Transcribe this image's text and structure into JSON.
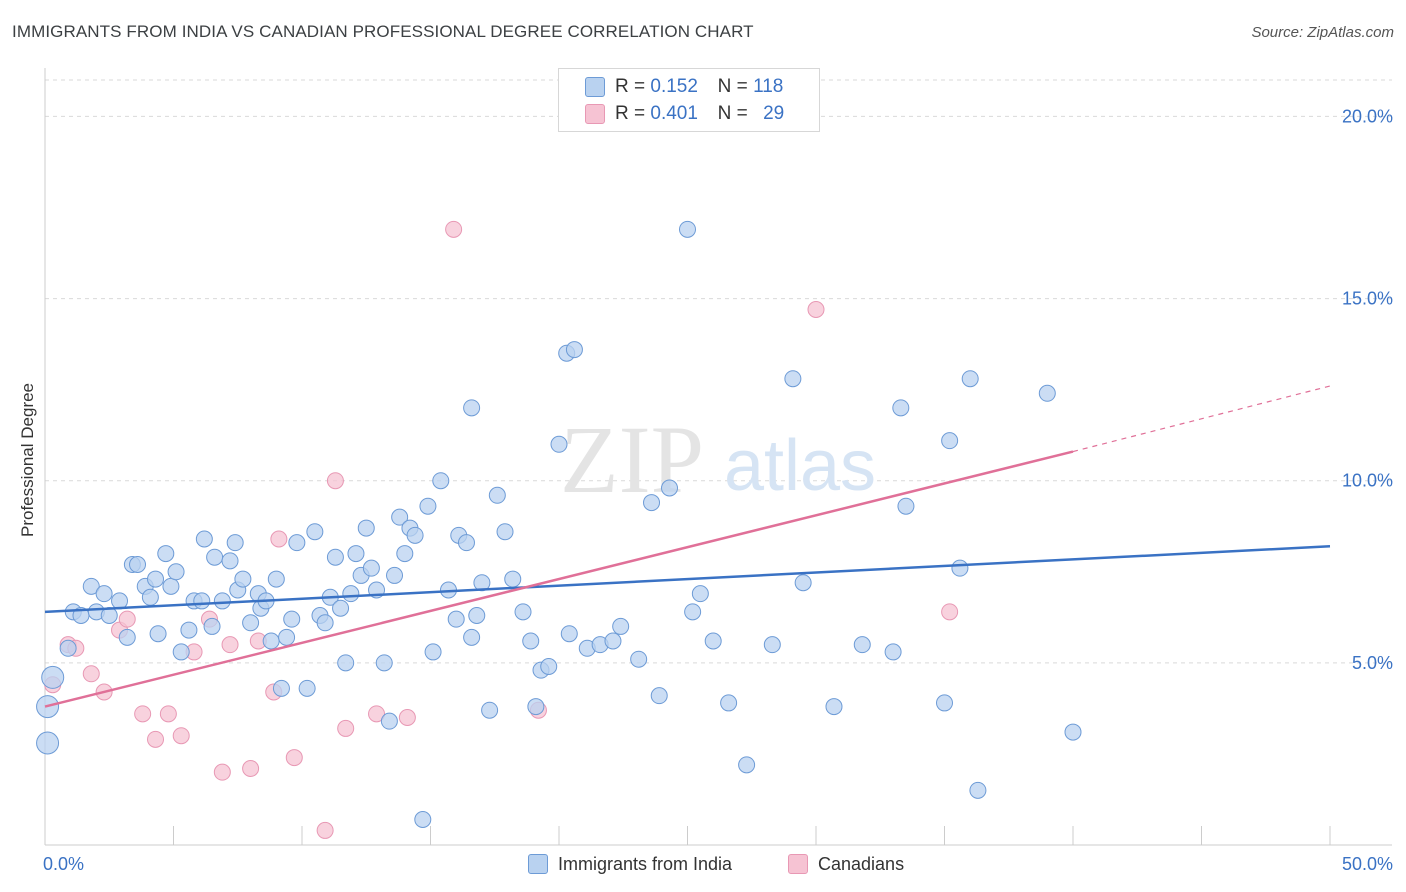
{
  "header": {
    "title": "IMMIGRANTS FROM INDIA VS CANADIAN PROFESSIONAL DEGREE CORRELATION CHART",
    "source": "Source: ZipAtlas.com"
  },
  "watermark": {
    "zip": "ZIP",
    "atlas": "atlas"
  },
  "legend": {
    "r_label": "R =",
    "n_label": "N =",
    "rows": [
      {
        "r": "0.152",
        "n": "118"
      },
      {
        "r": "0.401",
        "n": "29"
      }
    ]
  },
  "colors": {
    "blue": "#3a72c4",
    "blue_fill": "#b9d2f0",
    "blue_stroke": "#6d9bd6",
    "pink": "#e07098",
    "pink_fill": "#f6c3d3",
    "pink_stroke": "#e898b4",
    "grid": "#d9d9d9",
    "axis_text": "#3a72c4"
  },
  "chart_data": {
    "type": "scatter",
    "title": "IMMIGRANTS FROM INDIA VS CANADIAN PROFESSIONAL DEGREE CORRELATION CHART",
    "xlabel": "",
    "ylabel": "Professional Degree",
    "xlim": [
      0,
      50
    ],
    "ylim": [
      0,
      21
    ],
    "x_tick_labels": [
      "0.0%",
      "50.0%"
    ],
    "y_ticks": [
      5,
      10,
      15,
      20
    ],
    "y_tick_labels": [
      "5.0%",
      "10.0%",
      "15.0%",
      "20.0%"
    ],
    "grid": true,
    "legend_position": "top-center",
    "series": [
      {
        "name": "Immigrants from India",
        "color": "#3a72c4",
        "r": 0.152,
        "n": 118,
        "trend": {
          "x": [
            0,
            50
          ],
          "y": [
            6.4,
            8.2
          ]
        },
        "points": [
          [
            0.3,
            4.6
          ],
          [
            0.9,
            5.4
          ],
          [
            1.1,
            6.4
          ],
          [
            1.4,
            6.3
          ],
          [
            1.8,
            7.1
          ],
          [
            2.0,
            6.4
          ],
          [
            2.3,
            6.9
          ],
          [
            2.5,
            6.3
          ],
          [
            2.9,
            6.7
          ],
          [
            3.2,
            5.7
          ],
          [
            3.4,
            7.7
          ],
          [
            3.6,
            7.7
          ],
          [
            3.9,
            7.1
          ],
          [
            4.1,
            6.8
          ],
          [
            4.3,
            7.3
          ],
          [
            4.4,
            5.8
          ],
          [
            4.7,
            8.0
          ],
          [
            4.9,
            7.1
          ],
          [
            5.1,
            7.5
          ],
          [
            5.3,
            5.3
          ],
          [
            5.6,
            5.9
          ],
          [
            5.8,
            6.7
          ],
          [
            6.1,
            6.7
          ],
          [
            6.2,
            8.4
          ],
          [
            6.5,
            6.0
          ],
          [
            6.6,
            7.9
          ],
          [
            6.9,
            6.7
          ],
          [
            7.2,
            7.8
          ],
          [
            7.4,
            8.3
          ],
          [
            7.5,
            7.0
          ],
          [
            7.7,
            7.3
          ],
          [
            8.0,
            6.1
          ],
          [
            8.3,
            6.9
          ],
          [
            8.4,
            6.5
          ],
          [
            8.6,
            6.7
          ],
          [
            8.8,
            5.6
          ],
          [
            9.0,
            7.3
          ],
          [
            9.2,
            4.3
          ],
          [
            9.4,
            5.7
          ],
          [
            9.6,
            6.2
          ],
          [
            9.8,
            8.3
          ],
          [
            10.2,
            4.3
          ],
          [
            10.5,
            8.6
          ],
          [
            10.7,
            6.3
          ],
          [
            10.9,
            6.1
          ],
          [
            11.1,
            6.8
          ],
          [
            11.3,
            7.9
          ],
          [
            11.5,
            6.5
          ],
          [
            11.7,
            5.0
          ],
          [
            11.9,
            6.9
          ],
          [
            12.1,
            8.0
          ],
          [
            12.3,
            7.4
          ],
          [
            12.5,
            8.7
          ],
          [
            12.7,
            7.6
          ],
          [
            12.9,
            7.0
          ],
          [
            13.2,
            5.0
          ],
          [
            13.4,
            3.4
          ],
          [
            13.6,
            7.4
          ],
          [
            13.8,
            9.0
          ],
          [
            14.0,
            8.0
          ],
          [
            14.2,
            8.7
          ],
          [
            14.4,
            8.5
          ],
          [
            14.7,
            0.7
          ],
          [
            14.9,
            9.3
          ],
          [
            15.1,
            5.3
          ],
          [
            15.4,
            10.0
          ],
          [
            15.7,
            7.0
          ],
          [
            16.0,
            6.2
          ],
          [
            16.1,
            8.5
          ],
          [
            16.4,
            8.3
          ],
          [
            16.6,
            5.7
          ],
          [
            16.8,
            6.3
          ],
          [
            17.0,
            7.2
          ],
          [
            17.3,
            3.7
          ],
          [
            17.6,
            9.6
          ],
          [
            17.9,
            8.6
          ],
          [
            18.2,
            7.3
          ],
          [
            18.6,
            6.4
          ],
          [
            18.9,
            5.6
          ],
          [
            19.1,
            3.8
          ],
          [
            19.3,
            4.8
          ],
          [
            19.6,
            4.9
          ],
          [
            20.0,
            11.0
          ],
          [
            20.3,
            13.5
          ],
          [
            20.6,
            13.6
          ],
          [
            20.4,
            5.8
          ],
          [
            21.1,
            5.4
          ],
          [
            21.6,
            5.5
          ],
          [
            22.1,
            5.6
          ],
          [
            22.4,
            6.0
          ],
          [
            23.1,
            5.1
          ],
          [
            23.6,
            9.4
          ],
          [
            23.9,
            4.1
          ],
          [
            24.3,
            9.8
          ],
          [
            25.0,
            16.9
          ],
          [
            25.2,
            6.4
          ],
          [
            25.5,
            6.9
          ],
          [
            26.6,
            3.9
          ],
          [
            27.3,
            2.2
          ],
          [
            28.3,
            5.5
          ],
          [
            29.1,
            12.8
          ],
          [
            29.5,
            7.2
          ],
          [
            30.7,
            3.8
          ],
          [
            31.8,
            5.5
          ],
          [
            33.0,
            5.3
          ],
          [
            33.3,
            12.0
          ],
          [
            33.5,
            9.3
          ],
          [
            35.0,
            3.9
          ],
          [
            35.2,
            11.1
          ],
          [
            35.6,
            7.6
          ],
          [
            36.0,
            12.8
          ],
          [
            36.3,
            1.5
          ],
          [
            39.0,
            12.4
          ],
          [
            40.0,
            3.1
          ],
          [
            0.1,
            3.8
          ],
          [
            0.1,
            2.8
          ],
          [
            26.0,
            5.6
          ],
          [
            16.6,
            12.0
          ]
        ]
      },
      {
        "name": "Canadians",
        "color": "#e07098",
        "r": 0.401,
        "n": 29,
        "trend": {
          "x": [
            0,
            40
          ],
          "y": [
            3.8,
            10.8
          ]
        },
        "trend_dashed": {
          "x": [
            40,
            50
          ],
          "y": [
            10.8,
            12.6
          ]
        },
        "points": [
          [
            0.3,
            4.4
          ],
          [
            0.9,
            5.5
          ],
          [
            1.2,
            5.4
          ],
          [
            1.8,
            4.7
          ],
          [
            2.3,
            4.2
          ],
          [
            2.9,
            5.9
          ],
          [
            3.2,
            6.2
          ],
          [
            3.8,
            3.6
          ],
          [
            4.3,
            2.9
          ],
          [
            4.8,
            3.6
          ],
          [
            5.3,
            3.0
          ],
          [
            5.8,
            5.3
          ],
          [
            6.4,
            6.2
          ],
          [
            6.9,
            2.0
          ],
          [
            7.2,
            5.5
          ],
          [
            8.0,
            2.1
          ],
          [
            8.3,
            5.6
          ],
          [
            8.9,
            4.2
          ],
          [
            9.1,
            8.4
          ],
          [
            9.7,
            2.4
          ],
          [
            10.9,
            0.4
          ],
          [
            11.3,
            10.0
          ],
          [
            11.7,
            3.2
          ],
          [
            12.9,
            3.6
          ],
          [
            14.1,
            3.5
          ],
          [
            15.9,
            16.9
          ],
          [
            19.2,
            3.7
          ],
          [
            30.0,
            14.7
          ],
          [
            35.2,
            6.4
          ]
        ]
      }
    ]
  }
}
